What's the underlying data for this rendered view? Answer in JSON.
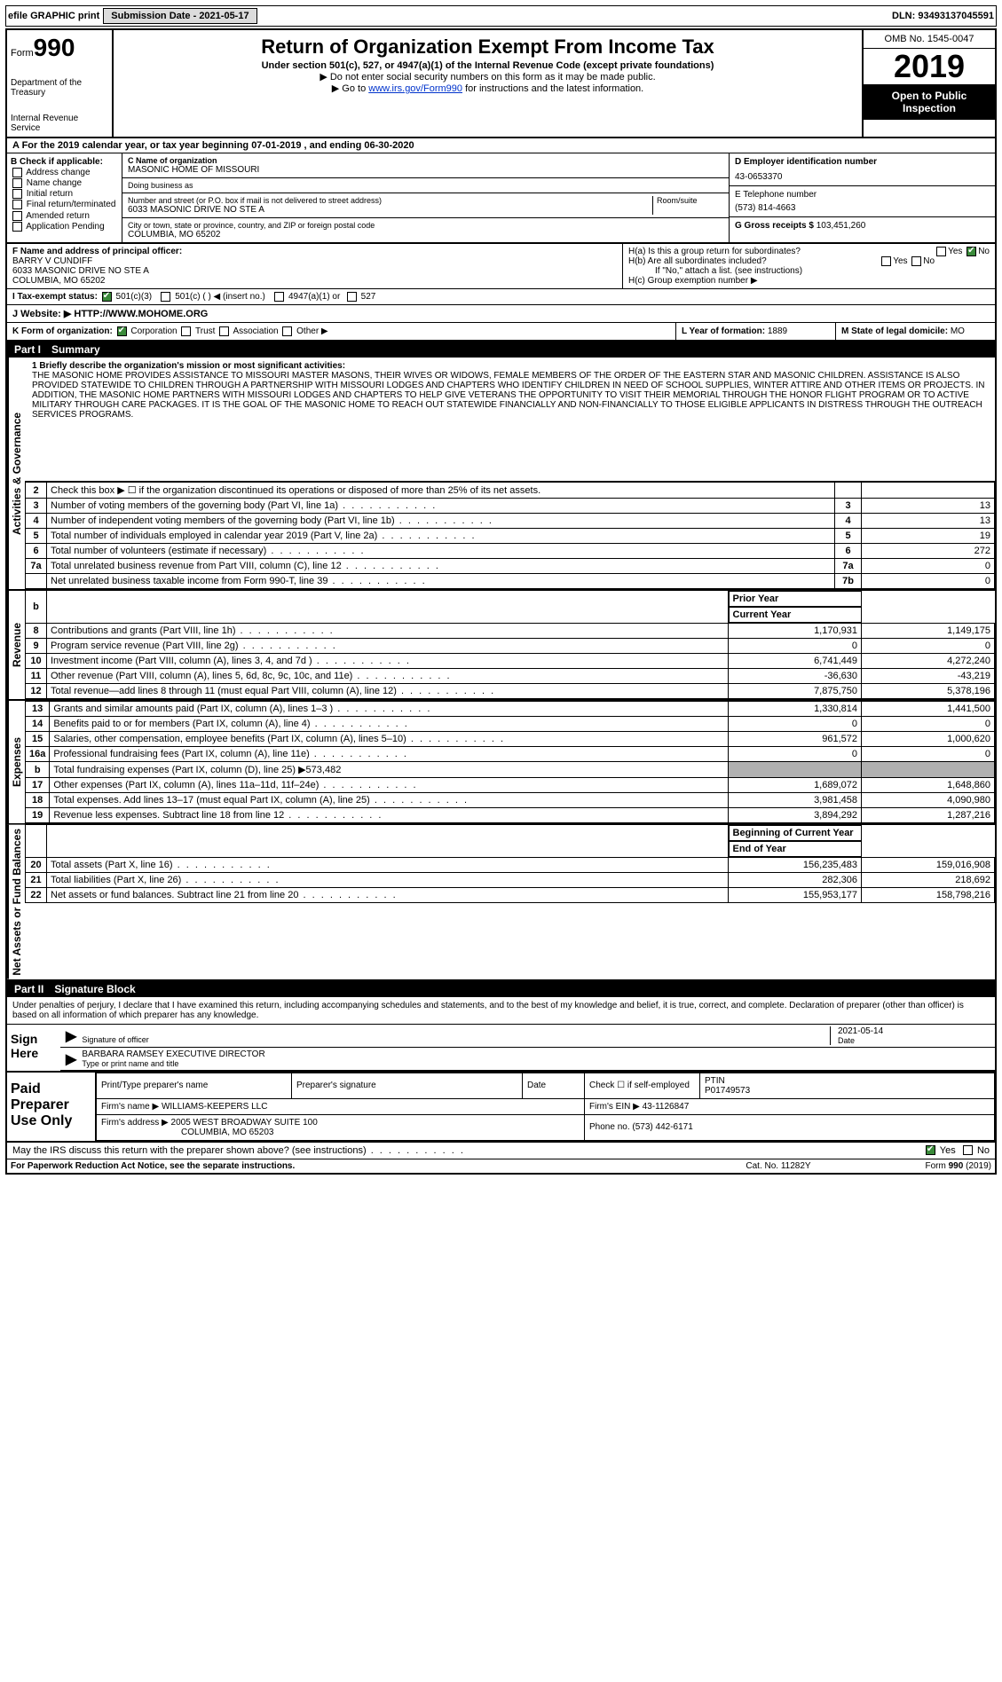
{
  "topbar": {
    "efile": "efile GRAPHIC print",
    "submission_label": "Submission Date - 2021-05-17",
    "dln": "DLN: 93493137045591"
  },
  "header": {
    "form_label": "Form",
    "form_number": "990",
    "dept": "Department of the Treasury",
    "irs": "Internal Revenue Service",
    "title": "Return of Organization Exempt From Income Tax",
    "subtitle": "Under section 501(c), 527, or 4947(a)(1) of the Internal Revenue Code (except private foundations)",
    "note1": "▶ Do not enter social security numbers on this form as it may be made public.",
    "note2_pre": "▶ Go to ",
    "note2_link": "www.irs.gov/Form990",
    "note2_post": " for instructions and the latest information.",
    "omb": "OMB No. 1545-0047",
    "year": "2019",
    "openpub": "Open to Public Inspection"
  },
  "row_a": "A For the 2019 calendar year, or tax year beginning 07-01-2019   , and ending 06-30-2020",
  "box_b": {
    "title": "B Check if applicable:",
    "opts": [
      "Address change",
      "Name change",
      "Initial return",
      "Final return/terminated",
      "Amended return",
      "Application Pending"
    ]
  },
  "box_c": {
    "name_label": "C Name of organization",
    "name": "MASONIC HOME OF MISSOURI",
    "dba_label": "Doing business as",
    "dba": "",
    "street_label": "Number and street (or P.O. box if mail is not delivered to street address)",
    "room_label": "Room/suite",
    "street": "6033 MASONIC DRIVE NO STE A",
    "city_label": "City or town, state or province, country, and ZIP or foreign postal code",
    "city": "COLUMBIA, MO  65202"
  },
  "box_d": {
    "label": "D Employer identification number",
    "value": "43-0653370"
  },
  "box_e": {
    "label": "E Telephone number",
    "value": "(573) 814-4663"
  },
  "box_g": {
    "label": "G Gross receipts $",
    "value": "103,451,260"
  },
  "box_f": {
    "label": "F  Name and address of principal officer:",
    "name": "BARRY V CUNDIFF",
    "addr1": "6033 MASONIC DRIVE NO STE A",
    "addr2": "COLUMBIA, MO  65202"
  },
  "box_h": {
    "a": "H(a)  Is this a group return for subordinates?",
    "a_yes": "Yes",
    "a_no": "No",
    "b": "H(b)  Are all subordinates included?",
    "b_yes": "Yes",
    "b_no": "No",
    "note": "If \"No,\" attach a list. (see instructions)",
    "c": "H(c)  Group exemption number ▶"
  },
  "box_i": {
    "label": "I  Tax-exempt status:",
    "opt1": "501(c)(3)",
    "opt2": "501(c) (   ) ◀ (insert no.)",
    "opt3": "4947(a)(1) or",
    "opt4": "527"
  },
  "box_j": {
    "label": "J  Website: ▶",
    "value": "HTTP://WWW.MOHOME.ORG"
  },
  "box_k": {
    "label": "K Form of organization:",
    "opts": [
      "Corporation",
      "Trust",
      "Association",
      "Other ▶"
    ]
  },
  "box_l": {
    "label": "L Year of formation:",
    "value": "1889"
  },
  "box_m": {
    "label": "M State of legal domicile:",
    "value": "MO"
  },
  "part1": {
    "num": "Part I",
    "title": "Summary"
  },
  "mission_label": "1  Briefly describe the organization's mission or most significant activities:",
  "mission": "THE MASONIC HOME PROVIDES ASSISTANCE TO MISSOURI MASTER MASONS, THEIR WIVES OR WIDOWS, FEMALE MEMBERS OF THE ORDER OF THE EASTERN STAR AND MASONIC CHILDREN. ASSISTANCE IS ALSO PROVIDED STATEWIDE TO CHILDREN THROUGH A PARTNERSHIP WITH MISSOURI LODGES AND CHAPTERS WHO IDENTIFY CHILDREN IN NEED OF SCHOOL SUPPLIES, WINTER ATTIRE AND OTHER ITEMS OR PROJECTS. IN ADDITION, THE MASONIC HOME PARTNERS WITH MISSOURI LODGES AND CHAPTERS TO HELP GIVE VETERANS THE OPPORTUNITY TO VISIT THEIR MEMORIAL THROUGH THE HONOR FLIGHT PROGRAM OR TO ACTIVE MILITARY THROUGH CARE PACKAGES. IT IS THE GOAL OF THE MASONIC HOME TO REACH OUT STATEWIDE FINANCIALLY AND NON-FINANCIALLY TO THOSE ELIGIBLE APPLICANTS IN DISTRESS THROUGH THE OUTREACH SERVICES PROGRAMS.",
  "sidelabels": {
    "ag": "Activities & Governance",
    "rev": "Revenue",
    "exp": "Expenses",
    "net": "Net Assets or Fund Balances"
  },
  "govlines": [
    {
      "n": "2",
      "t": "Check this box ▶ ☐ if the organization discontinued its operations or disposed of more than 25% of its net assets.",
      "k": "",
      "v": ""
    },
    {
      "n": "3",
      "t": "Number of voting members of the governing body (Part VI, line 1a)",
      "k": "3",
      "v": "13"
    },
    {
      "n": "4",
      "t": "Number of independent voting members of the governing body (Part VI, line 1b)",
      "k": "4",
      "v": "13"
    },
    {
      "n": "5",
      "t": "Total number of individuals employed in calendar year 2019 (Part V, line 2a)",
      "k": "5",
      "v": "19"
    },
    {
      "n": "6",
      "t": "Total number of volunteers (estimate if necessary)",
      "k": "6",
      "v": "272"
    },
    {
      "n": "7a",
      "t": "Total unrelated business revenue from Part VIII, column (C), line 12",
      "k": "7a",
      "v": "0"
    },
    {
      "n": "",
      "t": "Net unrelated business taxable income from Form 990-T, line 39",
      "k": "7b",
      "v": "0"
    }
  ],
  "colhdr": {
    "prior": "Prior Year",
    "current": "Current Year"
  },
  "revlines": [
    {
      "n": "8",
      "t": "Contributions and grants (Part VIII, line 1h)",
      "p": "1,170,931",
      "c": "1,149,175"
    },
    {
      "n": "9",
      "t": "Program service revenue (Part VIII, line 2g)",
      "p": "0",
      "c": "0"
    },
    {
      "n": "10",
      "t": "Investment income (Part VIII, column (A), lines 3, 4, and 7d )",
      "p": "6,741,449",
      "c": "4,272,240"
    },
    {
      "n": "11",
      "t": "Other revenue (Part VIII, column (A), lines 5, 6d, 8c, 9c, 10c, and 11e)",
      "p": "-36,630",
      "c": "-43,219"
    },
    {
      "n": "12",
      "t": "Total revenue—add lines 8 through 11 (must equal Part VIII, column (A), line 12)",
      "p": "7,875,750",
      "c": "5,378,196"
    }
  ],
  "explines": [
    {
      "n": "13",
      "t": "Grants and similar amounts paid (Part IX, column (A), lines 1–3 )",
      "p": "1,330,814",
      "c": "1,441,500"
    },
    {
      "n": "14",
      "t": "Benefits paid to or for members (Part IX, column (A), line 4)",
      "p": "0",
      "c": "0"
    },
    {
      "n": "15",
      "t": "Salaries, other compensation, employee benefits (Part IX, column (A), lines 5–10)",
      "p": "961,572",
      "c": "1,000,620"
    },
    {
      "n": "16a",
      "t": "Professional fundraising fees (Part IX, column (A), line 11e)",
      "p": "0",
      "c": "0"
    },
    {
      "n": "b",
      "t": "Total fundraising expenses (Part IX, column (D), line 25) ▶573,482",
      "p": "shade",
      "c": "shade"
    },
    {
      "n": "17",
      "t": "Other expenses (Part IX, column (A), lines 11a–11d, 11f–24e)",
      "p": "1,689,072",
      "c": "1,648,860"
    },
    {
      "n": "18",
      "t": "Total expenses. Add lines 13–17 (must equal Part IX, column (A), line 25)",
      "p": "3,981,458",
      "c": "4,090,980"
    },
    {
      "n": "19",
      "t": "Revenue less expenses. Subtract line 18 from line 12",
      "p": "3,894,292",
      "c": "1,287,216"
    }
  ],
  "colhdr2": {
    "beg": "Beginning of Current Year",
    "end": "End of Year"
  },
  "netlines": [
    {
      "n": "20",
      "t": "Total assets (Part X, line 16)",
      "p": "156,235,483",
      "c": "159,016,908"
    },
    {
      "n": "21",
      "t": "Total liabilities (Part X, line 26)",
      "p": "282,306",
      "c": "218,692"
    },
    {
      "n": "22",
      "t": "Net assets or fund balances. Subtract line 21 from line 20",
      "p": "155,953,177",
      "c": "158,798,216"
    }
  ],
  "part2": {
    "num": "Part II",
    "title": "Signature Block"
  },
  "sigdecl": "Under penalties of perjury, I declare that I have examined this return, including accompanying schedules and statements, and to the best of my knowledge and belief, it is true, correct, and complete. Declaration of preparer (other than officer) is based on all information of which preparer has any knowledge.",
  "sign": {
    "here": "Sign Here",
    "sig_label": "Signature of officer",
    "date_label": "Date",
    "date": "2021-05-14",
    "name": "BARBARA RAMSEY  EXECUTIVE DIRECTOR",
    "name_label": "Type or print name and title"
  },
  "prep": {
    "label": "Paid Preparer Use Only",
    "h1": "Print/Type preparer's name",
    "h2": "Preparer's signature",
    "h3": "Date",
    "h4": "Check ☐ if self-employed",
    "h5": "PTIN",
    "ptin": "P01749573",
    "firm_label": "Firm's name   ▶",
    "firm": "WILLIAMS-KEEPERS LLC",
    "ein_label": "Firm's EIN ▶",
    "ein": "43-1126847",
    "addr_label": "Firm's address ▶",
    "addr": "2005 WEST BROADWAY SUITE 100",
    "addr2": "COLUMBIA, MO  65203",
    "phone_label": "Phone no.",
    "phone": "(573) 442-6171"
  },
  "discuss": {
    "q": "May the IRS discuss this return with the preparer shown above? (see instructions)",
    "yes": "Yes",
    "no": "No"
  },
  "footer": {
    "pra": "For Paperwork Reduction Act Notice, see the separate instructions.",
    "cat": "Cat. No. 11282Y",
    "form": "Form 990 (2019)"
  }
}
